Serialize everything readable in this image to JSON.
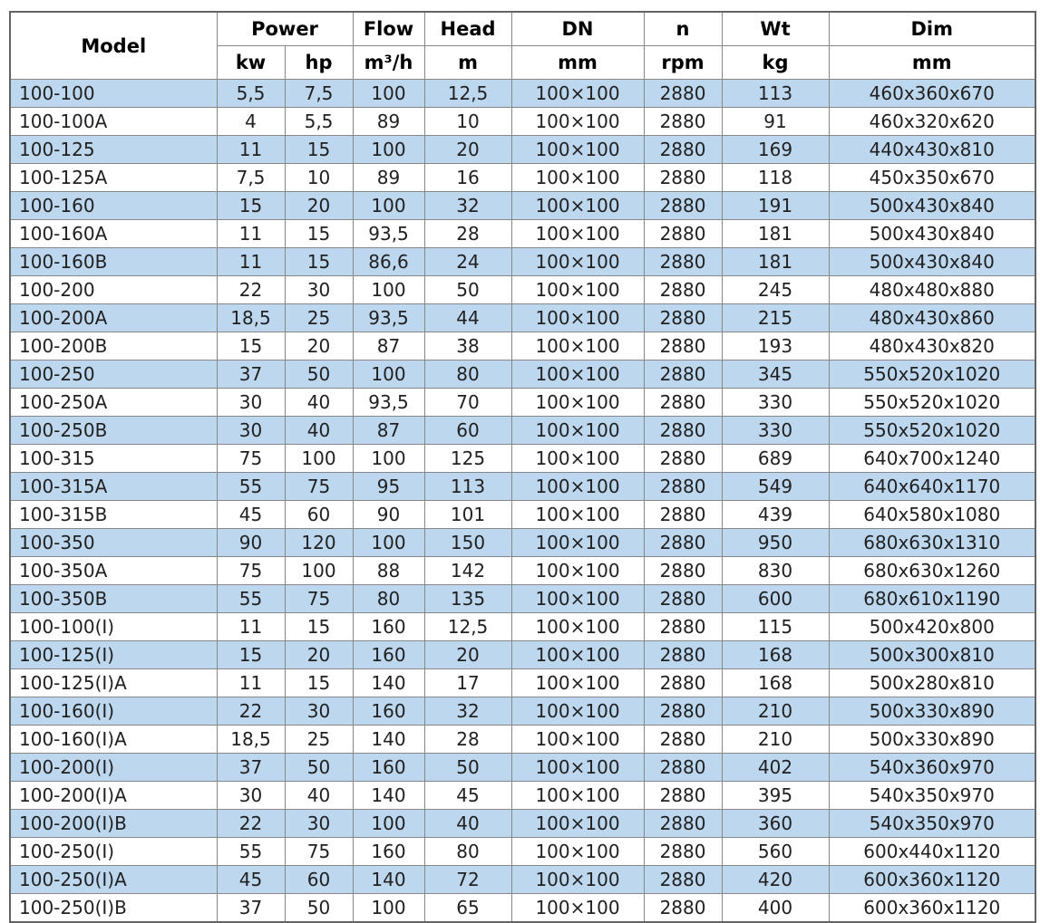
{
  "colors": {
    "row_shade": "#bdd7ee",
    "row_plain": "#ffffff",
    "grid_border": "#878787",
    "outer_border": "#636363",
    "header_text": "#000000",
    "cell_text": "#212121",
    "background": "#ffffff"
  },
  "chart_data": {
    "type": "table",
    "headers": {
      "model": "Model",
      "power": "Power",
      "flow": "Flow",
      "head": "Head",
      "dn": "DN",
      "n": "n",
      "wt": "Wt",
      "dim": "Dim",
      "units": {
        "kw": "kw",
        "hp": "hp",
        "flow": "m³/h",
        "head": "m",
        "dn": "mm",
        "n": "rpm",
        "wt": "kg",
        "dim": "mm"
      }
    },
    "rows": [
      {
        "model": "100-100",
        "kw": "5,5",
        "hp": "7,5",
        "flow": "100",
        "head": "12,5",
        "dn": "100×100",
        "rpm": "2880",
        "wt": "113",
        "dim": "460x360x670",
        "shaded": true
      },
      {
        "model": "100-100A",
        "kw": "4",
        "hp": "5,5",
        "flow": "89",
        "head": "10",
        "dn": "100×100",
        "rpm": "2880",
        "wt": "91",
        "dim": "460x320x620",
        "shaded": false
      },
      {
        "model": "100-125",
        "kw": "11",
        "hp": "15",
        "flow": "100",
        "head": "20",
        "dn": "100×100",
        "rpm": "2880",
        "wt": "169",
        "dim": "440x430x810",
        "shaded": true
      },
      {
        "model": "100-125A",
        "kw": "7,5",
        "hp": "10",
        "flow": "89",
        "head": "16",
        "dn": "100×100",
        "rpm": "2880",
        "wt": "118",
        "dim": "450x350x670",
        "shaded": false
      },
      {
        "model": "100-160",
        "kw": "15",
        "hp": "20",
        "flow": "100",
        "head": "32",
        "dn": "100×100",
        "rpm": "2880",
        "wt": "191",
        "dim": "500x430x840",
        "shaded": true
      },
      {
        "model": "100-160A",
        "kw": "11",
        "hp": "15",
        "flow": "93,5",
        "head": "28",
        "dn": "100×100",
        "rpm": "2880",
        "wt": "181",
        "dim": "500x430x840",
        "shaded": false
      },
      {
        "model": "100-160B",
        "kw": "11",
        "hp": "15",
        "flow": "86,6",
        "head": "24",
        "dn": "100×100",
        "rpm": "2880",
        "wt": "181",
        "dim": "500x430x840",
        "shaded": true
      },
      {
        "model": "100-200",
        "kw": "22",
        "hp": "30",
        "flow": "100",
        "head": "50",
        "dn": "100×100",
        "rpm": "2880",
        "wt": "245",
        "dim": "480x480x880",
        "shaded": false
      },
      {
        "model": "100-200A",
        "kw": "18,5",
        "hp": "25",
        "flow": "93,5",
        "head": "44",
        "dn": "100×100",
        "rpm": "2880",
        "wt": "215",
        "dim": "480x430x860",
        "shaded": true
      },
      {
        "model": "100-200B",
        "kw": "15",
        "hp": "20",
        "flow": "87",
        "head": "38",
        "dn": "100×100",
        "rpm": "2880",
        "wt": "193",
        "dim": "480x430x820",
        "shaded": false
      },
      {
        "model": "100-250",
        "kw": "37",
        "hp": "50",
        "flow": "100",
        "head": "80",
        "dn": "100×100",
        "rpm": "2880",
        "wt": "345",
        "dim": "550x520x1020",
        "shaded": true
      },
      {
        "model": "100-250A",
        "kw": "30",
        "hp": "40",
        "flow": "93,5",
        "head": "70",
        "dn": "100×100",
        "rpm": "2880",
        "wt": "330",
        "dim": "550x520x1020",
        "shaded": false
      },
      {
        "model": "100-250B",
        "kw": "30",
        "hp": "40",
        "flow": "87",
        "head": "60",
        "dn": "100×100",
        "rpm": "2880",
        "wt": "330",
        "dim": "550x520x1020",
        "shaded": true
      },
      {
        "model": "100-315",
        "kw": "75",
        "hp": "100",
        "flow": "100",
        "head": "125",
        "dn": "100×100",
        "rpm": "2880",
        "wt": "689",
        "dim": "640x700x1240",
        "shaded": false
      },
      {
        "model": "100-315A",
        "kw": "55",
        "hp": "75",
        "flow": "95",
        "head": "113",
        "dn": "100×100",
        "rpm": "2880",
        "wt": "549",
        "dim": "640x640x1170",
        "shaded": true
      },
      {
        "model": "100-315B",
        "kw": "45",
        "hp": "60",
        "flow": "90",
        "head": "101",
        "dn": "100×100",
        "rpm": "2880",
        "wt": "439",
        "dim": "640x580x1080",
        "shaded": false
      },
      {
        "model": "100-350",
        "kw": "90",
        "hp": "120",
        "flow": "100",
        "head": "150",
        "dn": "100×100",
        "rpm": "2880",
        "wt": "950",
        "dim": "680x630x1310",
        "shaded": true
      },
      {
        "model": "100-350A",
        "kw": "75",
        "hp": "100",
        "flow": "88",
        "head": "142",
        "dn": "100×100",
        "rpm": "2880",
        "wt": "830",
        "dim": "680x630x1260",
        "shaded": false
      },
      {
        "model": "100-350B",
        "kw": "55",
        "hp": "75",
        "flow": "80",
        "head": "135",
        "dn": "100×100",
        "rpm": "2880",
        "wt": "600",
        "dim": "680x610x1190",
        "shaded": true
      },
      {
        "model": "100-100(I)",
        "kw": "11",
        "hp": "15",
        "flow": "160",
        "head": "12,5",
        "dn": "100×100",
        "rpm": "2880",
        "wt": "115",
        "dim": "500x420x800",
        "shaded": false
      },
      {
        "model": "100-125(I)",
        "kw": "15",
        "hp": "20",
        "flow": "160",
        "head": "20",
        "dn": "100×100",
        "rpm": "2880",
        "wt": "168",
        "dim": "500x300x810",
        "shaded": true
      },
      {
        "model": "100-125(I)A",
        "kw": "11",
        "hp": "15",
        "flow": "140",
        "head": "17",
        "dn": "100×100",
        "rpm": "2880",
        "wt": "168",
        "dim": "500x280x810",
        "shaded": false
      },
      {
        "model": "100-160(I)",
        "kw": "22",
        "hp": "30",
        "flow": "160",
        "head": "32",
        "dn": "100×100",
        "rpm": "2880",
        "wt": "210",
        "dim": "500x330x890",
        "shaded": true
      },
      {
        "model": "100-160(I)A",
        "kw": "18,5",
        "hp": "25",
        "flow": "140",
        "head": "28",
        "dn": "100×100",
        "rpm": "2880",
        "wt": "210",
        "dim": "500x330x890",
        "shaded": false
      },
      {
        "model": "100-200(I)",
        "kw": "37",
        "hp": "50",
        "flow": "160",
        "head": "50",
        "dn": "100×100",
        "rpm": "2880",
        "wt": "402",
        "dim": "540x360x970",
        "shaded": true
      },
      {
        "model": "100-200(I)A",
        "kw": "30",
        "hp": "40",
        "flow": "140",
        "head": "45",
        "dn": "100×100",
        "rpm": "2880",
        "wt": "395",
        "dim": "540x350x970",
        "shaded": false
      },
      {
        "model": "100-200(I)B",
        "kw": "22",
        "hp": "30",
        "flow": "100",
        "head": "40",
        "dn": "100×100",
        "rpm": "2880",
        "wt": "360",
        "dim": "540x350x970",
        "shaded": true
      },
      {
        "model": "100-250(I)",
        "kw": "55",
        "hp": "75",
        "flow": "160",
        "head": "80",
        "dn": "100×100",
        "rpm": "2880",
        "wt": "560",
        "dim": "600x440x1120",
        "shaded": false
      },
      {
        "model": "100-250(I)A",
        "kw": "45",
        "hp": "60",
        "flow": "140",
        "head": "72",
        "dn": "100×100",
        "rpm": "2880",
        "wt": "420",
        "dim": "600x360x1120",
        "shaded": true
      },
      {
        "model": "100-250(I)B",
        "kw": "37",
        "hp": "50",
        "flow": "100",
        "head": "65",
        "dn": "100×100",
        "rpm": "2880",
        "wt": "400",
        "dim": "600x360x1120",
        "shaded": false
      }
    ]
  }
}
